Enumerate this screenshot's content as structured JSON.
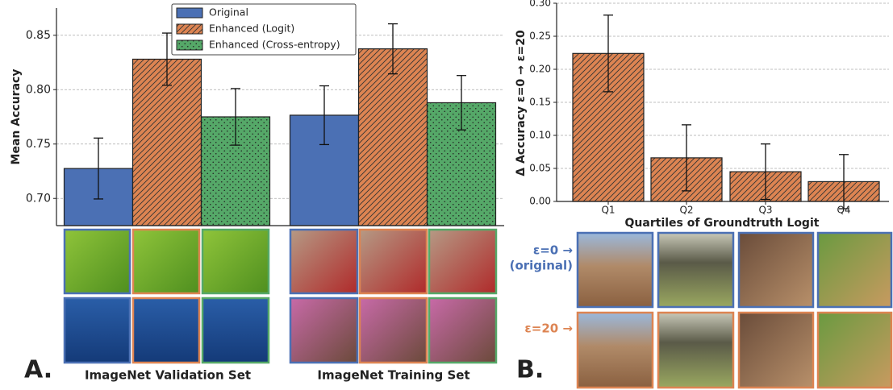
{
  "chart_data": [
    {
      "type": "bar",
      "ylabel": "Mean Accuracy",
      "annotation": "A.",
      "categories": [
        "ImageNet Validation Set",
        "ImageNet Training Set"
      ],
      "ylim": [
        0.675,
        0.875
      ],
      "yticks": [
        {
          "value": 0.7,
          "label": "0.70"
        },
        {
          "value": 0.75,
          "label": "0.75"
        },
        {
          "value": 0.8,
          "label": "0.80"
        },
        {
          "value": 0.85,
          "label": "0.85"
        }
      ],
      "grid": true,
      "legend": "upper center",
      "series": [
        {
          "name": "Original",
          "color": "#4b70b4",
          "hatch": "none",
          "values": [
            0.7275,
            0.7765
          ],
          "errors": [
            0.028,
            0.027
          ]
        },
        {
          "name": "Enhanced (Logit)",
          "color": "#dd8452",
          "hatch": "lines",
          "values": [
            0.828,
            0.8375
          ],
          "errors": [
            0.024,
            0.023
          ]
        },
        {
          "name": "Enhanced (Cross-entropy)",
          "color": "#55a868",
          "hatch": "dots",
          "values": [
            0.775,
            0.788
          ],
          "errors": [
            0.026,
            0.025
          ]
        }
      ]
    },
    {
      "type": "bar",
      "ylabel": "Δ Accuracy ε=0 → ε=20",
      "xlabel": "Quartiles of Groundtruth Logit",
      "annotation": "B.",
      "row_labels": [
        "ε=0 →",
        "(original)",
        "ε=20 →"
      ],
      "categories": [
        "Q1",
        "Q2",
        "Q3",
        "Q4"
      ],
      "ylim": [
        0,
        0.3
      ],
      "yticks": [
        {
          "value": 0,
          "label": "0.00"
        },
        {
          "value": 0.05,
          "label": "0.05"
        },
        {
          "value": 0.1,
          "label": "0.10"
        },
        {
          "value": 0.15,
          "label": "0.15"
        },
        {
          "value": 0.2,
          "label": "0.20"
        },
        {
          "value": 0.25,
          "label": "0.25"
        },
        {
          "value": 0.3,
          "label": "0.30"
        }
      ],
      "grid": true,
      "series": [
        {
          "color": "#dd8452",
          "hatch": "lines",
          "values": [
            0.224,
            0.066,
            0.045,
            0.03
          ],
          "errors": [
            0.058,
            0.05,
            0.042,
            0.041
          ]
        }
      ]
    }
  ]
}
